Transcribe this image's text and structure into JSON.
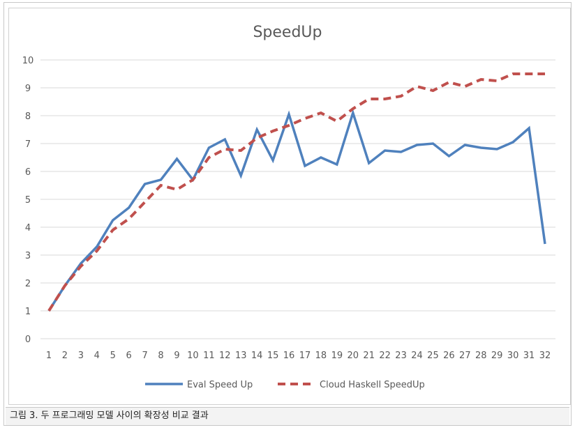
{
  "caption": "그림 3. 두 프로그래밍 모델 사이의 확장성 비교 결과",
  "chart_data": {
    "type": "line",
    "title": "SpeedUp",
    "xlabel": "",
    "ylabel": "",
    "categories": [
      "1",
      "2",
      "3",
      "4",
      "5",
      "6",
      "7",
      "8",
      "9",
      "10",
      "11",
      "12",
      "13",
      "14",
      "15",
      "16",
      "17",
      "18",
      "19",
      "20",
      "21",
      "22",
      "23",
      "24",
      "25",
      "26",
      "27",
      "28",
      "29",
      "30",
      "31",
      "32"
    ],
    "ylim": [
      0,
      10
    ],
    "yticks": [
      "0",
      "1",
      "2",
      "3",
      "4",
      "5",
      "6",
      "7",
      "8",
      "9",
      "10"
    ],
    "grid": true,
    "legend_position": "bottom",
    "series": [
      {
        "name": "Eval Speed Up",
        "color": "#4f81bd",
        "style": "solid",
        "values": [
          1.0,
          1.9,
          2.7,
          3.3,
          4.25,
          4.7,
          5.55,
          5.7,
          6.45,
          5.7,
          6.85,
          7.15,
          5.85,
          7.5,
          6.4,
          8.05,
          6.2,
          6.5,
          6.25,
          8.1,
          6.3,
          6.75,
          6.7,
          6.95,
          7.0,
          6.55,
          6.95,
          6.85,
          6.8,
          7.05,
          7.55,
          3.4
        ]
      },
      {
        "name": "Cloud Haskell SpeedUp",
        "color": "#c0504d",
        "style": "dashed",
        "values": [
          1.0,
          1.9,
          2.6,
          3.15,
          3.9,
          4.3,
          4.9,
          5.5,
          5.35,
          5.7,
          6.5,
          6.8,
          6.75,
          7.2,
          7.45,
          7.65,
          7.9,
          8.1,
          7.8,
          8.25,
          8.6,
          8.6,
          8.7,
          9.05,
          8.9,
          9.2,
          9.05,
          9.3,
          9.25,
          9.5,
          9.5,
          9.5
        ]
      }
    ]
  }
}
